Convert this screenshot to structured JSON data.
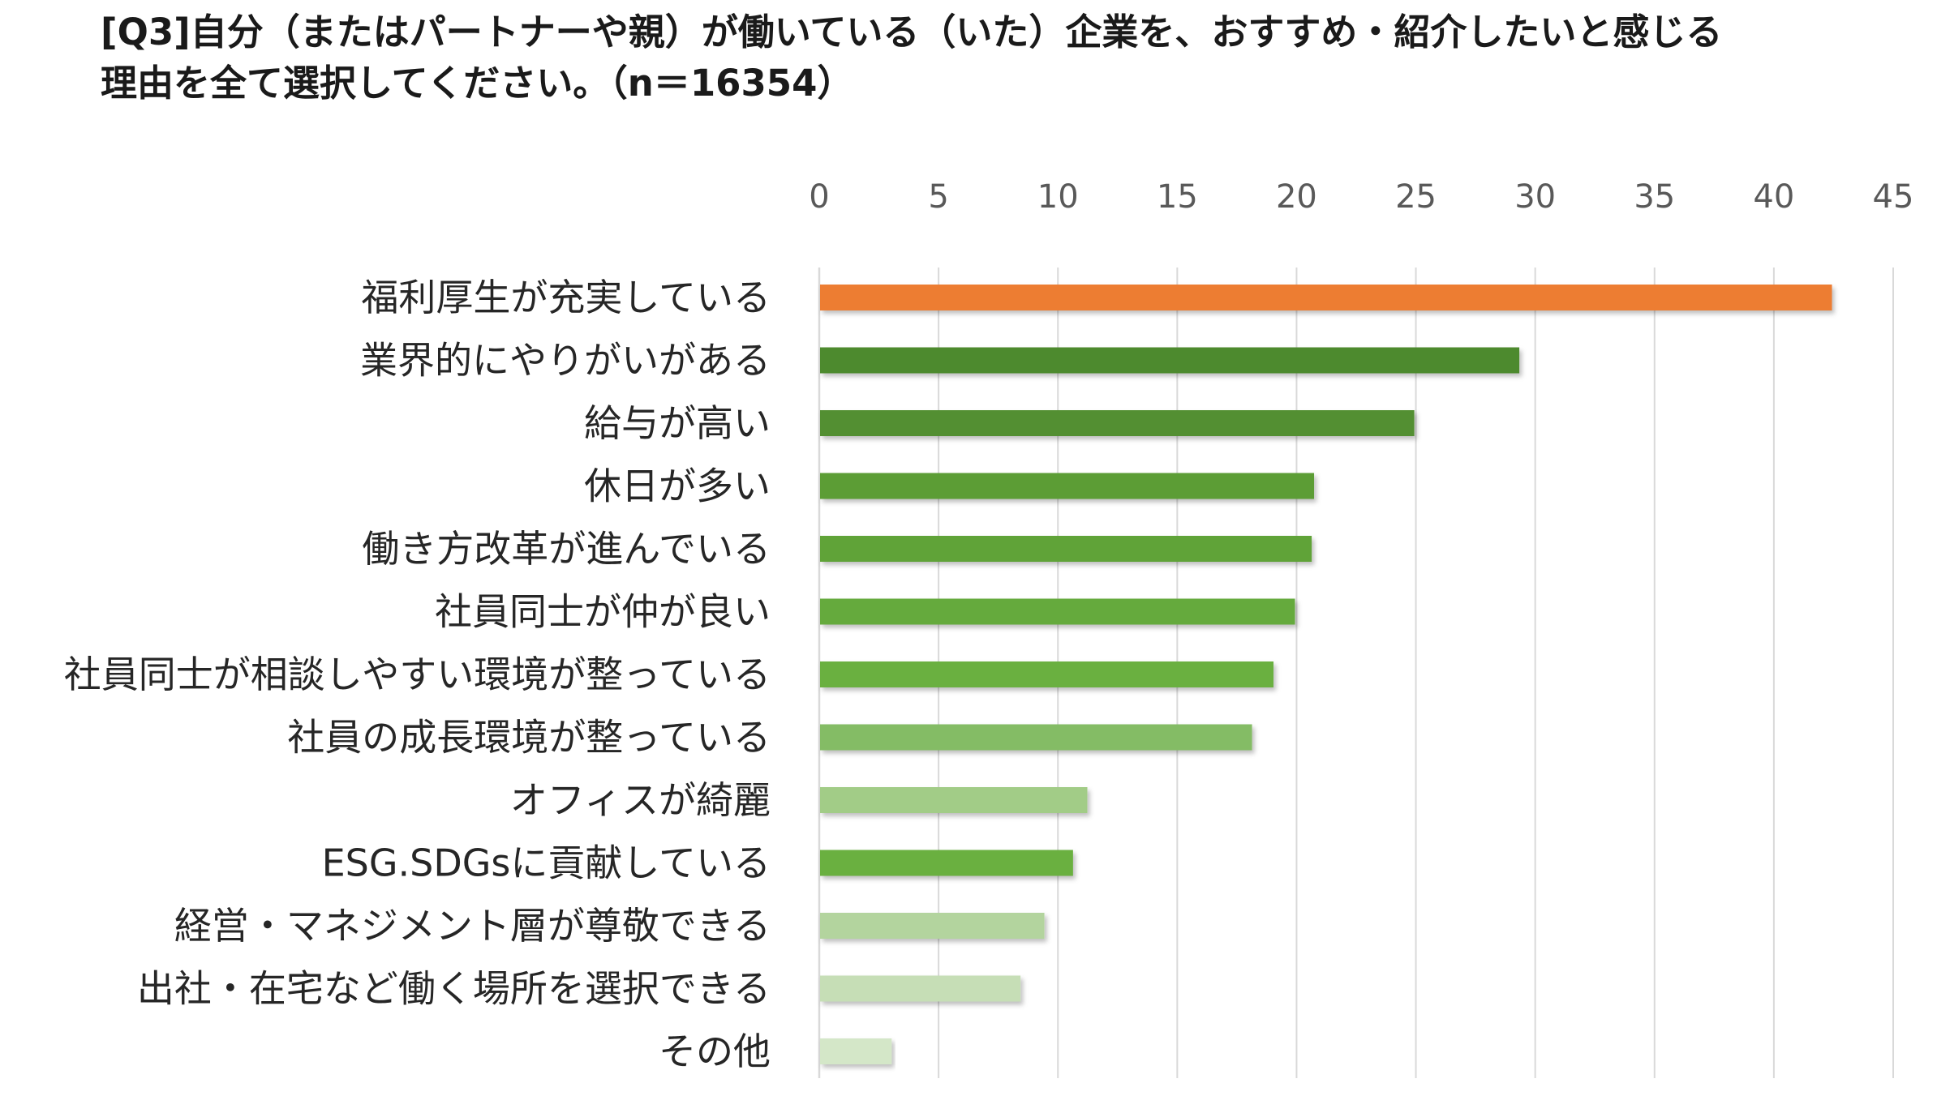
{
  "title_lines": [
    "[Q3]自分（またはパートナーや親）が働いている（いた）企業を、おすすめ・紹介したいと感じる",
    "理由を全て選択してください。（n＝16354）"
  ],
  "chart_data": {
    "type": "bar",
    "orientation": "horizontal",
    "title": "[Q3]自分（またはパートナーや親）が働いている（いた）企業を、おすすめ・紹介したいと感じる理由を全て選択してください。（n＝16354）",
    "categories": [
      "福利厚生が充実している",
      "業界的にやりがいがある",
      "給与が高い",
      "休日が多い",
      "働き方改革が進んでいる",
      "社員同士が仲が良い",
      "社員同士が相談しやすい環境が整っている",
      "社員の成長環境が整っている",
      "オフィスが綺麗",
      "ESG.SDGsに貢献している",
      "経営・マネジメント層が尊敬できる",
      "出社・在宅など働く場所を選択できる",
      "その他"
    ],
    "values": [
      42.4,
      29.3,
      24.9,
      20.7,
      20.6,
      19.9,
      19.0,
      18.1,
      11.2,
      10.6,
      9.4,
      8.4,
      3.0
    ],
    "colors": [
      "#ED7D31",
      "#4E8A2E",
      "#538F30",
      "#5C9D35",
      "#60A338",
      "#65AA3C",
      "#6AB041",
      "#84BC65",
      "#A2CC87",
      "#6AB041",
      "#B3D49E",
      "#C6DEB6",
      "#D4E7C8"
    ],
    "xlim": [
      0,
      45
    ],
    "xticks": [
      "0",
      "5",
      "10",
      "15",
      "20",
      "25",
      "30",
      "35",
      "40",
      "45"
    ],
    "xtick_values": [
      0,
      5,
      10,
      15,
      20,
      25,
      30,
      35,
      40,
      45
    ],
    "axis_position": "top",
    "grid": true,
    "grid_color": "#D9D9D9",
    "legend": "none",
    "xlabel": "",
    "ylabel": ""
  }
}
